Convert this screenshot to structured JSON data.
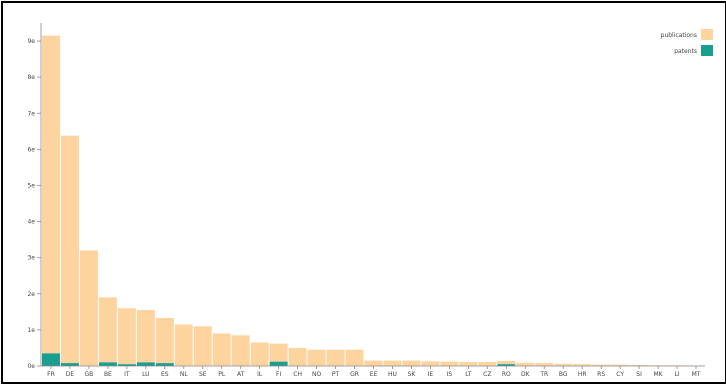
{
  "chart_data": {
    "type": "bar",
    "stacked": true,
    "title": "",
    "xlabel": "",
    "ylabel": "",
    "categories": [
      "FR",
      "DE",
      "GB",
      "BE",
      "IT",
      "LU",
      "ES",
      "NL",
      "SE",
      "PL",
      "AT",
      "IL",
      "FI",
      "CH",
      "NO",
      "PT",
      "GR",
      "EE",
      "HU",
      "SK",
      "IE",
      "IS",
      "LT",
      "CZ",
      "RO",
      "DK",
      "TR",
      "BG",
      "HR",
      "RS",
      "CY",
      "SI",
      "MK",
      "LI",
      "MT"
    ],
    "series": [
      {
        "name": "publications",
        "color": "#fdd49e",
        "values": [
          88,
          63,
          32,
          18,
          15.5,
          14.5,
          12.5,
          11.5,
          11,
          9,
          8.5,
          6.5,
          5,
          5,
          4.5,
          4.5,
          4.5,
          1.5,
          1.5,
          1.5,
          1.3,
          1.2,
          1.1,
          1.1,
          0.9,
          0.9,
          0.8,
          0.6,
          0.5,
          0.4,
          0.4,
          0.3,
          0.2,
          0.2,
          0.1
        ]
      },
      {
        "name": "patents",
        "color": "#1a9e8f",
        "values": [
          3.5,
          0.8,
          0,
          1,
          0.5,
          1,
          0.8,
          0,
          0,
          0,
          0,
          0,
          1.2,
          0,
          0,
          0,
          0,
          0,
          0,
          0,
          0,
          0,
          0,
          0,
          0.5,
          0,
          0,
          0,
          0,
          0,
          0,
          0,
          0,
          0,
          0
        ]
      }
    ],
    "ylim": [
      0,
      95
    ],
    "yticks": [
      0,
      10,
      20,
      30,
      40,
      50,
      60,
      70,
      80,
      90
    ],
    "ytick_labels": [
      "0e",
      "1e",
      "2e",
      "3e",
      "4e",
      "5e",
      "6e",
      "7e",
      "8e",
      "9e"
    ],
    "grid": false,
    "legend": "top-right"
  }
}
